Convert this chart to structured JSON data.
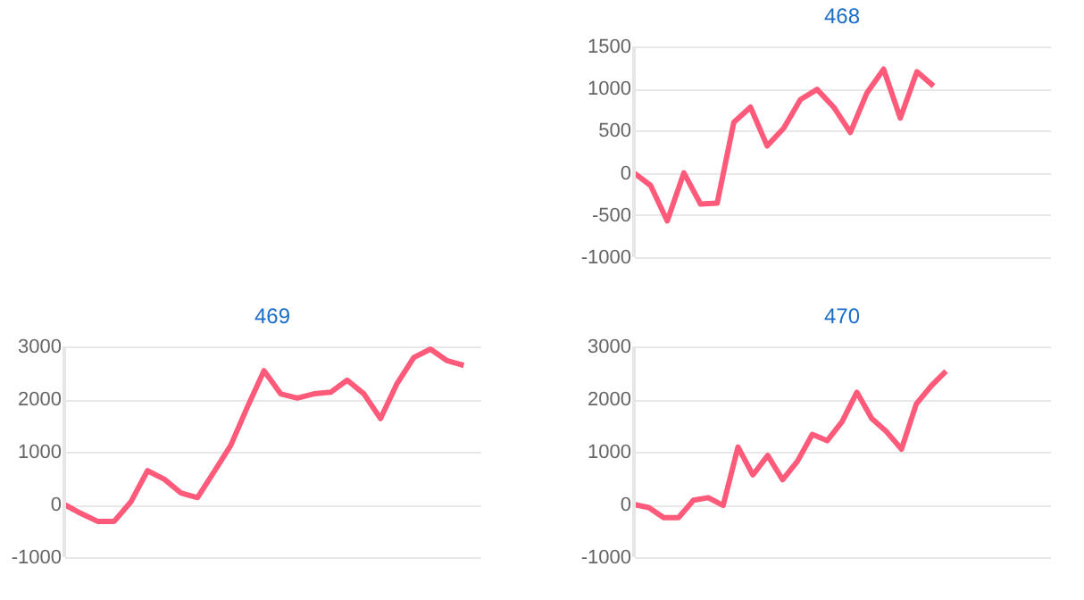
{
  "chart_data": [
    {
      "type": "line",
      "title": "468",
      "categories": [
        null,
        null,
        null,
        null,
        null,
        null,
        null,
        null,
        null,
        null,
        null,
        null,
        null,
        null,
        null,
        null,
        null,
        null,
        null,
        null,
        null,
        null,
        null,
        null,
        null,
        null
      ],
      "series": [
        {
          "color": "#ff5a7a",
          "values": [
            0,
            -150,
            -570,
            0,
            -370,
            -360,
            600,
            780,
            320,
            530,
            870,
            990,
            780,
            480,
            950,
            1230,
            650,
            1200,
            1030,
            null,
            null,
            null,
            null,
            null,
            null,
            null
          ]
        }
      ],
      "ylim": [
        -1000,
        1500
      ],
      "yticks": [
        -1000,
        -500,
        0,
        500,
        1000,
        1500
      ],
      "grid": "y",
      "tick_labels": "y",
      "legend": false,
      "marker": "none",
      "line_style": "solid"
    },
    {
      "type": "line",
      "title": "469",
      "categories": [
        null,
        null,
        null,
        null,
        null,
        null,
        null,
        null,
        null,
        null,
        null,
        null,
        null,
        null,
        null,
        null,
        null,
        null,
        null,
        null,
        null,
        null,
        null,
        null,
        null,
        null
      ],
      "series": [
        {
          "color": "#ff5a7a",
          "values": [
            0,
            -170,
            -320,
            -320,
            50,
            640,
            480,
            220,
            130,
            620,
            1120,
            1850,
            2540,
            2100,
            2020,
            2100,
            2130,
            2360,
            2100,
            1630,
            2300,
            2790,
            2950,
            2730,
            2640,
            null
          ]
        }
      ],
      "ylim": [
        -1000,
        3000
      ],
      "yticks": [
        -1000,
        0,
        1000,
        2000,
        3000
      ],
      "grid": "y",
      "tick_labels": "y",
      "legend": false,
      "marker": "none",
      "line_style": "solid"
    },
    {
      "type": "line",
      "title": "470",
      "categories": [
        null,
        null,
        null,
        null,
        null,
        null,
        null,
        null,
        null,
        null,
        null,
        null,
        null,
        null,
        null,
        null,
        null,
        null,
        null,
        null,
        null,
        null,
        null,
        null,
        null,
        null,
        null,
        null,
        null
      ],
      "series": [
        {
          "color": "#ff5a7a",
          "values": [
            0,
            -60,
            -250,
            -250,
            80,
            130,
            -20,
            1090,
            560,
            930,
            470,
            820,
            1330,
            1210,
            1570,
            2130,
            1630,
            1380,
            1050,
            1910,
            2250,
            2530,
            null,
            null,
            null,
            null,
            null,
            null,
            null
          ]
        }
      ],
      "ylim": [
        -1000,
        3000
      ],
      "yticks": [
        -1000,
        0,
        1000,
        2000,
        3000
      ],
      "grid": "y",
      "tick_labels": "y",
      "legend": false,
      "marker": "none",
      "line_style": "solid"
    }
  ]
}
